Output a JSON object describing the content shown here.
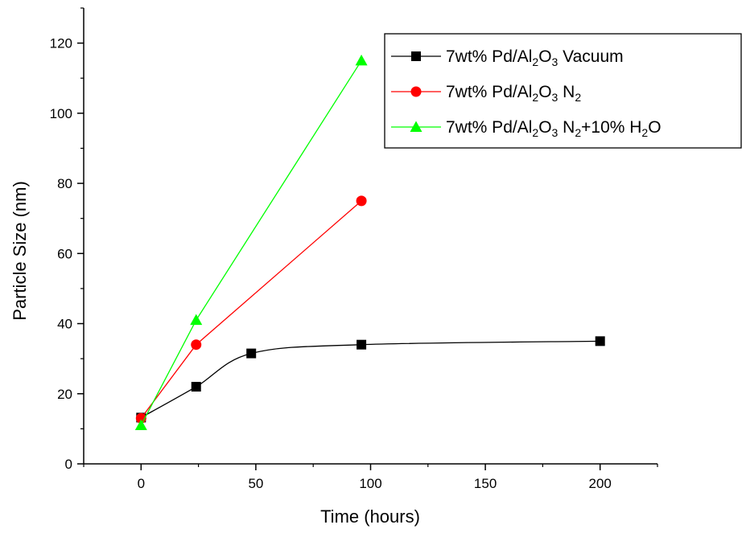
{
  "chart_data": {
    "type": "line",
    "title": "",
    "xlabel": "Time (hours)",
    "ylabel": "Particle Size (nm)",
    "xlim": [
      -25,
      225
    ],
    "ylim": [
      0,
      130
    ],
    "xticks": [
      0,
      50,
      100,
      150,
      200
    ],
    "yticks": [
      0,
      20,
      40,
      60,
      80,
      100,
      120
    ],
    "legend_position": "top-right",
    "series": [
      {
        "name_parts": [
          "7wt% Pd/Al",
          "2",
          "O",
          "3",
          " Vacuum"
        ],
        "color": "#000000",
        "marker": "square",
        "smooth": true,
        "x": [
          0,
          24,
          48,
          96,
          200
        ],
        "y": [
          13.2,
          22,
          31.5,
          34,
          35
        ]
      },
      {
        "name_parts": [
          "7wt% Pd/Al",
          "2",
          "O",
          "3",
          " N",
          "2"
        ],
        "color": "#ff0000",
        "marker": "circle",
        "smooth": false,
        "x": [
          0,
          24,
          96
        ],
        "y": [
          13,
          34,
          75
        ]
      },
      {
        "name_parts": [
          "7wt% Pd/Al",
          "2",
          "O",
          "3",
          " N",
          "2",
          "+10% H",
          "2",
          "O"
        ],
        "color": "#00ff00",
        "marker": "triangle",
        "smooth": false,
        "x": [
          0,
          24,
          96
        ],
        "y": [
          11,
          41,
          115
        ]
      }
    ]
  }
}
